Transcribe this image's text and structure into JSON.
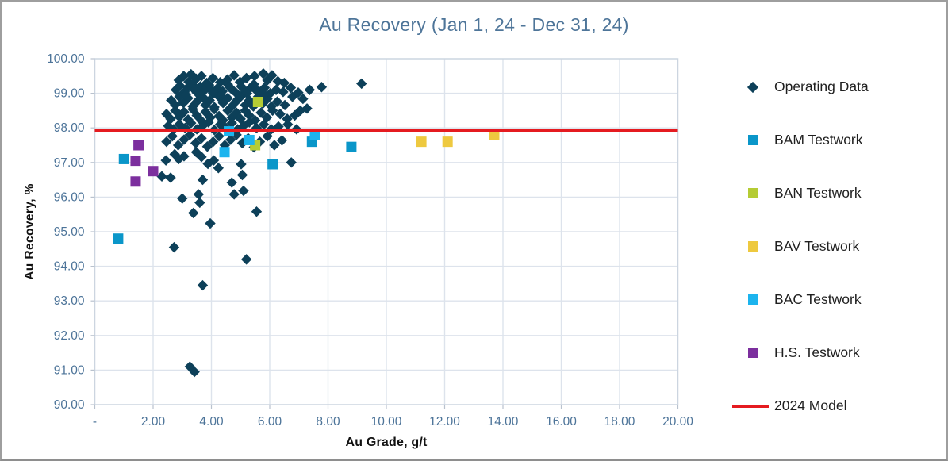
{
  "chart_data": {
    "type": "scatter",
    "title": "Au Recovery (Jan 1, 24 - Dec 31, 24)",
    "xlabel": "Au Grade, g/t",
    "ylabel": "Au Recovery, %",
    "xlim": [
      0,
      20
    ],
    "ylim": [
      90,
      100
    ],
    "grid": true,
    "legend_position": "right",
    "x_tick_values": [
      0,
      2,
      4,
      6,
      8,
      10,
      12,
      14,
      16,
      18,
      20
    ],
    "x_ticks": [
      "-",
      "2.00",
      "4.00",
      "6.00",
      "8.00",
      "10.00",
      "12.00",
      "14.00",
      "16.00",
      "18.00",
      "20.00"
    ],
    "y_tick_values": [
      90,
      91,
      92,
      93,
      94,
      95,
      96,
      97,
      98,
      99,
      100
    ],
    "y_ticks": [
      "90.00",
      "91.00",
      "92.00",
      "93.00",
      "94.00",
      "95.00",
      "96.00",
      "97.00",
      "98.00",
      "99.00",
      "100.00"
    ],
    "series": [
      {
        "name": "Operating Data",
        "marker": "diamond",
        "color": "#0d4059",
        "points": [
          [
            2.88,
            99.38
          ],
          [
            3.05,
            99.5
          ],
          [
            3.22,
            99.33
          ],
          [
            3.3,
            99.55
          ],
          [
            3.48,
            99.42
          ],
          [
            3.66,
            99.5
          ],
          [
            3.84,
            99.3
          ],
          [
            4.05,
            99.44
          ],
          [
            4.3,
            99.32
          ],
          [
            4.55,
            99.4
          ],
          [
            4.78,
            99.52
          ],
          [
            4.98,
            99.33
          ],
          [
            5.2,
            99.44
          ],
          [
            5.48,
            99.5
          ],
          [
            5.78,
            99.57
          ],
          [
            5.92,
            99.38
          ],
          [
            6.08,
            99.52
          ],
          [
            6.28,
            99.35
          ],
          [
            6.5,
            99.3
          ],
          [
            2.78,
            99.1
          ],
          [
            2.92,
            99.22
          ],
          [
            3.08,
            99.04
          ],
          [
            3.18,
            99.16
          ],
          [
            3.34,
            99.26
          ],
          [
            3.5,
            99.02
          ],
          [
            3.62,
            99.2
          ],
          [
            3.76,
            99.08
          ],
          [
            3.92,
            99.24
          ],
          [
            4.06,
            99.0
          ],
          [
            4.2,
            99.14
          ],
          [
            4.38,
            99.06
          ],
          [
            4.56,
            99.26
          ],
          [
            4.72,
            99.1
          ],
          [
            4.86,
            99.0
          ],
          [
            5.02,
            99.2
          ],
          [
            5.16,
            99.04
          ],
          [
            5.32,
            99.14
          ],
          [
            5.46,
            99.26
          ],
          [
            5.62,
            99.06
          ],
          [
            5.82,
            99.16
          ],
          [
            6.02,
            99.0
          ],
          [
            6.22,
            99.1
          ],
          [
            6.46,
            99.04
          ],
          [
            6.72,
            99.16
          ],
          [
            6.98,
            99.02
          ],
          [
            7.37,
            99.1
          ],
          [
            7.78,
            99.18
          ],
          [
            9.15,
            99.28
          ],
          [
            2.62,
            98.8
          ],
          [
            2.76,
            98.66
          ],
          [
            2.9,
            98.9
          ],
          [
            3.04,
            98.72
          ],
          [
            3.2,
            98.86
          ],
          [
            3.36,
            98.62
          ],
          [
            3.5,
            98.76
          ],
          [
            3.64,
            98.94
          ],
          [
            3.8,
            98.66
          ],
          [
            3.94,
            98.8
          ],
          [
            4.1,
            98.6
          ],
          [
            4.26,
            98.9
          ],
          [
            4.4,
            98.72
          ],
          [
            4.56,
            98.86
          ],
          [
            4.7,
            98.62
          ],
          [
            4.84,
            98.76
          ],
          [
            5.0,
            98.9
          ],
          [
            5.16,
            98.66
          ],
          [
            5.3,
            98.8
          ],
          [
            5.44,
            98.62
          ],
          [
            5.6,
            98.9
          ],
          [
            5.76,
            98.7
          ],
          [
            5.92,
            98.84
          ],
          [
            6.06,
            98.62
          ],
          [
            6.26,
            98.76
          ],
          [
            6.52,
            98.66
          ],
          [
            6.78,
            98.9
          ],
          [
            7.14,
            98.84
          ],
          [
            7.05,
            98.5
          ],
          [
            3.12,
            98.96
          ],
          [
            3.42,
            99.1
          ],
          [
            3.72,
            98.88
          ],
          [
            4.02,
            99.06
          ],
          [
            4.32,
            98.94
          ],
          [
            4.62,
            99.18
          ],
          [
            4.92,
            98.84
          ],
          [
            5.22,
            99.0
          ],
          [
            5.52,
            99.1
          ],
          [
            5.82,
            98.96
          ],
          [
            2.46,
            98.4
          ],
          [
            2.6,
            98.26
          ],
          [
            2.76,
            98.5
          ],
          [
            2.9,
            98.32
          ],
          [
            3.06,
            98.46
          ],
          [
            3.2,
            98.24
          ],
          [
            3.36,
            98.54
          ],
          [
            3.5,
            98.36
          ],
          [
            3.66,
            98.2
          ],
          [
            3.8,
            98.46
          ],
          [
            3.96,
            98.3
          ],
          [
            4.1,
            98.54
          ],
          [
            4.26,
            98.34
          ],
          [
            4.4,
            98.22
          ],
          [
            4.56,
            98.5
          ],
          [
            4.7,
            98.3
          ],
          [
            4.86,
            98.44
          ],
          [
            5.0,
            98.26
          ],
          [
            5.16,
            98.5
          ],
          [
            5.3,
            98.36
          ],
          [
            5.5,
            98.22
          ],
          [
            5.7,
            98.44
          ],
          [
            5.9,
            98.3
          ],
          [
            6.1,
            98.5
          ],
          [
            6.36,
            98.4
          ],
          [
            6.6,
            98.26
          ],
          [
            6.86,
            98.36
          ],
          [
            7.28,
            98.56
          ],
          [
            2.52,
            98.06
          ],
          [
            2.7,
            97.96
          ],
          [
            2.9,
            98.1
          ],
          [
            3.1,
            98.0
          ],
          [
            3.3,
            98.14
          ],
          [
            3.5,
            97.96
          ],
          [
            3.7,
            98.06
          ],
          [
            3.9,
            98.16
          ],
          [
            4.1,
            97.94
          ],
          [
            4.3,
            98.1
          ],
          [
            4.5,
            98.0
          ],
          [
            4.7,
            98.14
          ],
          [
            4.9,
            97.96
          ],
          [
            5.1,
            98.06
          ],
          [
            5.3,
            98.16
          ],
          [
            5.55,
            98.0
          ],
          [
            5.8,
            98.1
          ],
          [
            6.05,
            97.96
          ],
          [
            6.3,
            98.04
          ],
          [
            6.62,
            98.1
          ],
          [
            6.92,
            97.96
          ],
          [
            2.46,
            97.6
          ],
          [
            2.66,
            97.76
          ],
          [
            2.86,
            97.5
          ],
          [
            3.06,
            97.66
          ],
          [
            3.26,
            97.8
          ],
          [
            3.46,
            97.56
          ],
          [
            3.66,
            97.7
          ],
          [
            3.86,
            97.46
          ],
          [
            4.06,
            97.6
          ],
          [
            4.26,
            97.76
          ],
          [
            4.46,
            97.5
          ],
          [
            4.66,
            97.66
          ],
          [
            4.86,
            97.8
          ],
          [
            5.06,
            97.56
          ],
          [
            5.26,
            97.7
          ],
          [
            5.46,
            97.44
          ],
          [
            5.66,
            97.6
          ],
          [
            5.92,
            97.76
          ],
          [
            6.16,
            97.5
          ],
          [
            6.42,
            97.64
          ],
          [
            2.3,
            96.6
          ],
          [
            2.44,
            97.06
          ],
          [
            2.6,
            96.56
          ],
          [
            2.74,
            97.24
          ],
          [
            2.88,
            97.1
          ],
          [
            3.06,
            97.18
          ],
          [
            3.48,
            97.3
          ],
          [
            3.66,
            97.16
          ],
          [
            3.7,
            96.5
          ],
          [
            3.88,
            96.96
          ],
          [
            4.08,
            97.06
          ],
          [
            4.24,
            96.84
          ],
          [
            4.7,
            96.42
          ],
          [
            5.06,
            96.64
          ],
          [
            5.02,
            96.95
          ],
          [
            6.74,
            97.0
          ],
          [
            3.0,
            95.96
          ],
          [
            3.56,
            96.08
          ],
          [
            3.6,
            95.84
          ],
          [
            4.78,
            96.08
          ],
          [
            5.1,
            96.18
          ],
          [
            3.38,
            95.54
          ],
          [
            5.55,
            95.58
          ],
          [
            3.96,
            95.24
          ],
          [
            2.72,
            94.55
          ],
          [
            5.2,
            94.2
          ],
          [
            3.7,
            93.45
          ],
          [
            3.26,
            91.1
          ],
          [
            3.42,
            90.95
          ]
        ]
      },
      {
        "name": "BAM Testwork",
        "marker": "square",
        "color": "#0a96c9",
        "points": [
          [
            0.8,
            94.8
          ],
          [
            1.0,
            97.1
          ],
          [
            6.1,
            96.95
          ],
          [
            7.45,
            97.6
          ],
          [
            8.8,
            97.45
          ]
        ]
      },
      {
        "name": "BAN Testwork",
        "marker": "square",
        "color": "#b5cc34",
        "points": [
          [
            5.6,
            98.75
          ],
          [
            5.5,
            97.5
          ]
        ]
      },
      {
        "name": "BAV Testwork",
        "marker": "square",
        "color": "#eec93f",
        "points": [
          [
            11.2,
            97.6
          ],
          [
            12.1,
            97.6
          ],
          [
            13.7,
            97.8
          ]
        ]
      },
      {
        "name": "BAC Testwork",
        "marker": "square",
        "color": "#1cb4ee",
        "points": [
          [
            4.45,
            97.3
          ],
          [
            4.6,
            97.9
          ],
          [
            5.3,
            97.65
          ],
          [
            7.55,
            97.8
          ]
        ]
      },
      {
        "name": "H.S. Testwork",
        "marker": "square",
        "color": "#7c2f9e",
        "points": [
          [
            1.5,
            97.5
          ],
          [
            1.4,
            97.05
          ],
          [
            2.0,
            96.75
          ],
          [
            1.4,
            96.45
          ]
        ]
      },
      {
        "name": "2024 Model",
        "marker": "line",
        "color": "#e51b20",
        "line_y": 97.93
      }
    ],
    "style": {
      "gridline_color": "#dde3ec",
      "plot_border_color": "#ccd5e0",
      "tick_color": "#b9c2ce",
      "tick_label_color": "#4d7499",
      "title_color": "#4e7599"
    }
  }
}
